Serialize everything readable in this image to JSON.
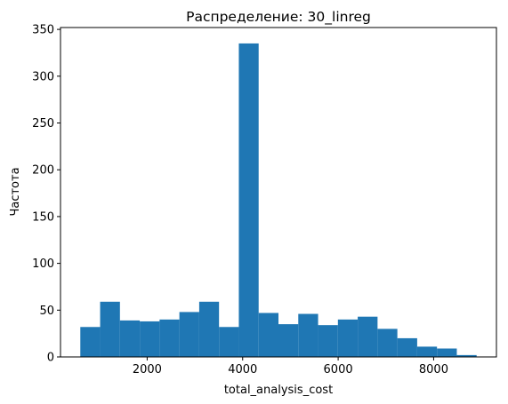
{
  "chart_data": {
    "type": "bar",
    "title": "Распределение: 30_linreg",
    "xlabel": "total_analysis_cost",
    "ylabel": "Частота",
    "bin_edges": [
      600,
      1015,
      1430,
      1845,
      2260,
      2675,
      3090,
      3505,
      3920,
      4335,
      4750,
      5165,
      5580,
      5995,
      6410,
      6825,
      7240,
      7655,
      8070,
      8485,
      8900
    ],
    "values": [
      32,
      59,
      39,
      38,
      40,
      48,
      59,
      32,
      335,
      47,
      35,
      46,
      34,
      40,
      43,
      30,
      20,
      11,
      9,
      2
    ],
    "xlim": [
      185,
      9315
    ],
    "ylim": [
      0,
      352
    ],
    "xticks": [
      2000,
      4000,
      6000,
      8000
    ],
    "yticks": [
      0,
      50,
      100,
      150,
      200,
      250,
      300,
      350
    ],
    "bar_color": "#1f77b4",
    "grid": false
  }
}
